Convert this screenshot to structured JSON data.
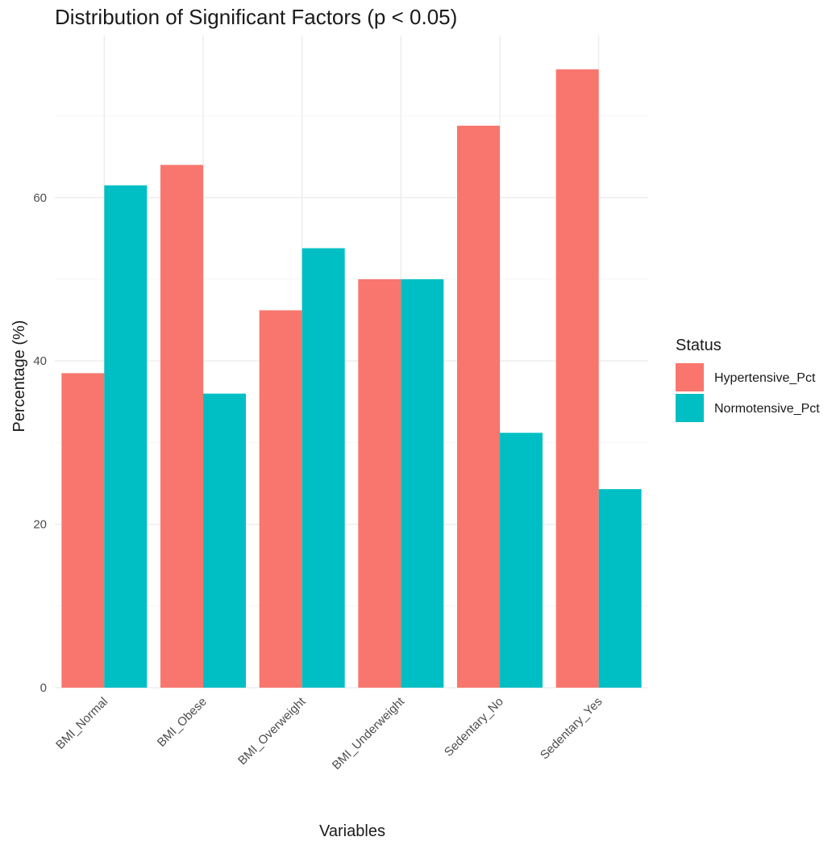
{
  "chart_data": {
    "type": "bar",
    "title": "Distribution of Significant Factors (p < 0.05)",
    "xlabel": "Variables",
    "ylabel": "Percentage (%)",
    "categories": [
      "BMI_Normal",
      "BMI_Obese",
      "BMI_Overweight",
      "BMI_Underweight",
      "Sedentary_No",
      "Sedentary_Yes"
    ],
    "series": [
      {
        "name": "Hypertensive_Pct",
        "color": "#F8766D",
        "values": [
          38.5,
          64.0,
          46.2,
          50.0,
          68.8,
          75.7
        ]
      },
      {
        "name": "Normotensive_Pct",
        "color": "#00BFC4",
        "values": [
          61.5,
          36.0,
          53.8,
          50.0,
          31.2,
          24.3
        ]
      }
    ],
    "ylim": [
      0,
      78
    ],
    "yticks": [
      0,
      20,
      40,
      60
    ],
    "grid": true,
    "legend": {
      "title": "Status",
      "position": "right"
    }
  }
}
